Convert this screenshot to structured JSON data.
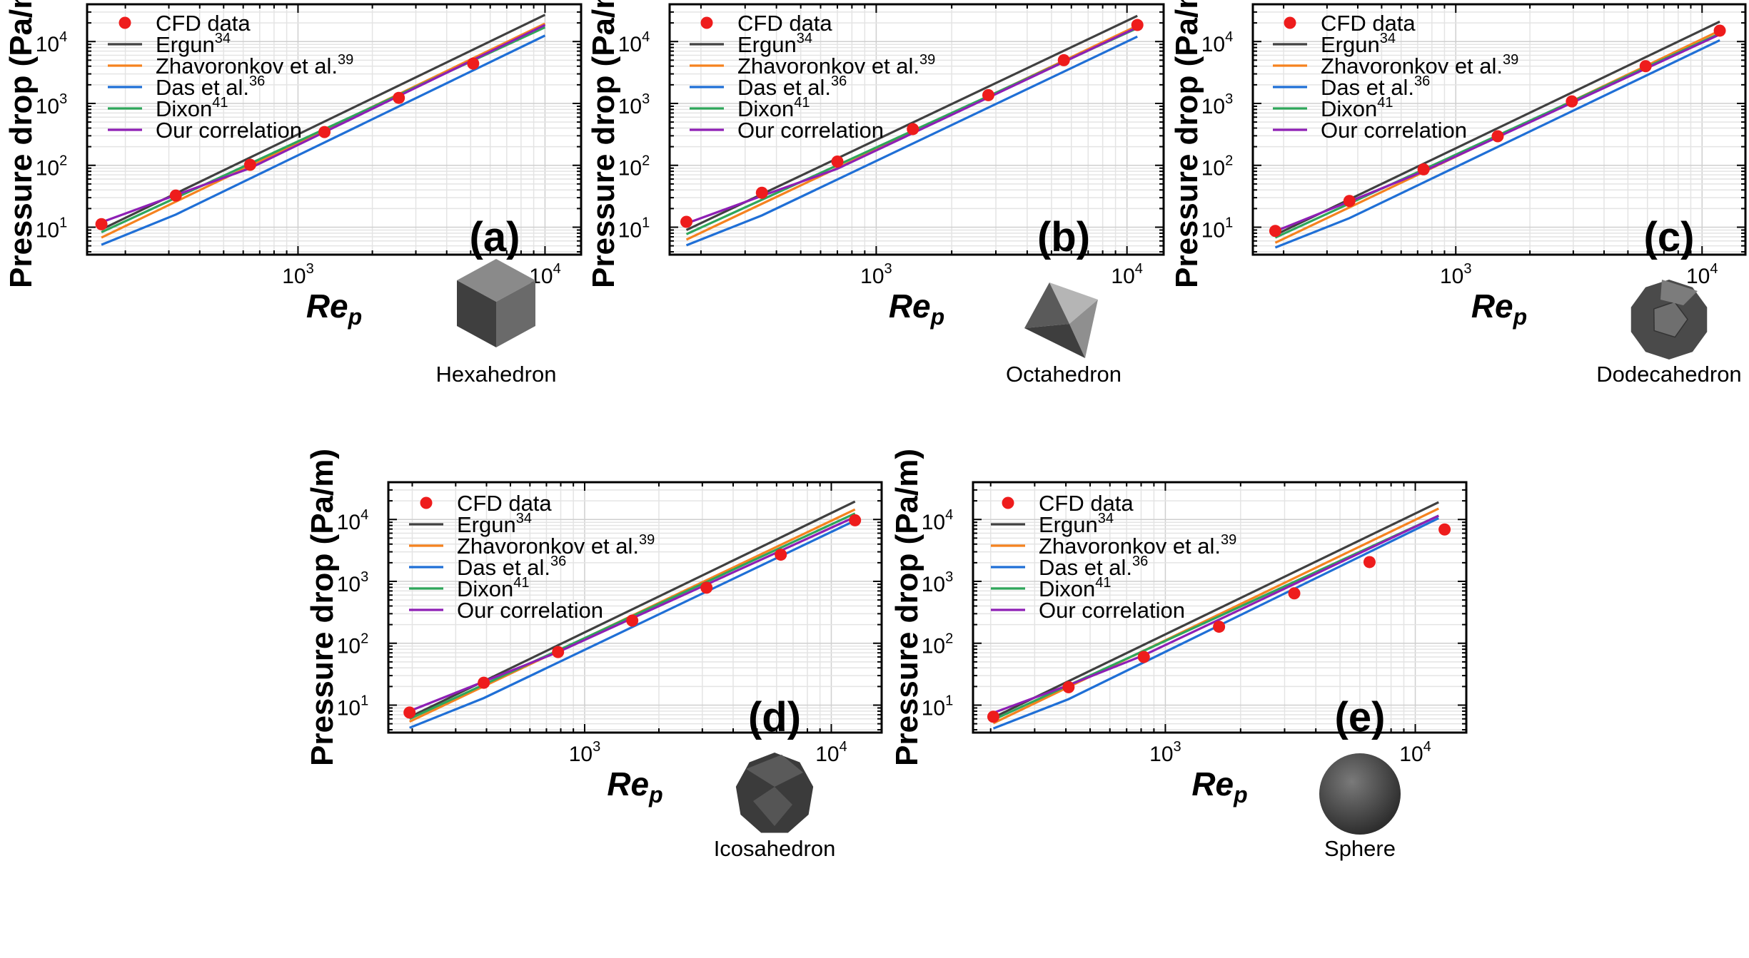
{
  "chart_data": [
    {
      "type": "line",
      "panel_label": "(a)",
      "shape": "Hexahedron",
      "shape_icon": "cube-icon",
      "xlabel": "Re",
      "xlabel_sub": "p",
      "ylabel": "Pressure drop (Pa/m)",
      "xscale": "log",
      "yscale": "log",
      "xlim": [
        140,
        14000
      ],
      "ylim": [
        3.6,
        40000
      ],
      "x_tick_labels": [
        "10",
        "10"
      ],
      "x_tick_exps": [
        "3",
        "4"
      ],
      "y_tick_labels": [
        "10",
        "10",
        "10",
        "10"
      ],
      "y_tick_exps": [
        "1",
        "2",
        "3",
        "4"
      ],
      "grid": true,
      "legend_position": "top-left",
      "series": [
        {
          "name": "CFD data",
          "ref": "",
          "kind": "scatter",
          "color": "#ee1c1c",
          "x": [
            160,
            320,
            640,
            1280,
            2560,
            5120
          ],
          "y": [
            11.2,
            32.5,
            102,
            345,
            1230,
            4400
          ]
        },
        {
          "name": "Ergun",
          "ref": "34",
          "kind": "line",
          "color": "#404040",
          "x": [
            160,
            10000
          ],
          "y": [
            9.2,
            27000
          ]
        },
        {
          "name": "Zhavoronkov et al.",
          "ref": "39",
          "kind": "line",
          "color": "#f5821f",
          "x": [
            160,
            10000
          ],
          "y": [
            6.8,
            19500
          ]
        },
        {
          "name": "Das et al.",
          "ref": "36",
          "kind": "line",
          "color": "#1f6fd6",
          "x": [
            160,
            320,
            10000
          ],
          "y": [
            5.2,
            16,
            12500
          ]
        },
        {
          "name": "Dixon",
          "ref": "41",
          "kind": "line",
          "color": "#2ea65a",
          "x": [
            160,
            10000
          ],
          "y": [
            8.3,
            17000
          ]
        },
        {
          "name": "Our correlation",
          "ref": "",
          "kind": "line",
          "color": "#8e1fb5",
          "x": [
            160,
            320,
            640,
            10000
          ],
          "y": [
            12,
            33,
            90,
            18500
          ]
        }
      ]
    },
    {
      "type": "line",
      "panel_label": "(b)",
      "shape": "Octahedron",
      "shape_icon": "octahedron-icon",
      "xlabel": "Re",
      "xlabel_sub": "p",
      "ylabel": "Pressure drop (Pa/m)",
      "xscale": "log",
      "yscale": "log",
      "xlim": [
        150,
        14000
      ],
      "ylim": [
        3.6,
        40000
      ],
      "x_tick_labels": [
        "10",
        "10"
      ],
      "x_tick_exps": [
        "3",
        "4"
      ],
      "y_tick_labels": [
        "10",
        "10",
        "10",
        "10"
      ],
      "y_tick_exps": [
        "1",
        "2",
        "3",
        "4"
      ],
      "grid": true,
      "legend_position": "top-left",
      "series": [
        {
          "name": "CFD data",
          "ref": "",
          "kind": "scatter",
          "color": "#ee1c1c",
          "x": [
            175,
            350,
            700,
            1400,
            2800,
            5600,
            11000
          ],
          "y": [
            12.2,
            36,
            115,
            385,
            1360,
            5000,
            18500
          ]
        },
        {
          "name": "Ergun",
          "ref": "34",
          "kind": "line",
          "color": "#404040",
          "x": [
            175,
            11000
          ],
          "y": [
            9,
            26000
          ]
        },
        {
          "name": "Zhavoronkov et al.",
          "ref": "39",
          "kind": "line",
          "color": "#f5821f",
          "x": [
            175,
            11000
          ],
          "y": [
            6.3,
            18000
          ]
        },
        {
          "name": "Das et al.",
          "ref": "36",
          "kind": "line",
          "color": "#1f6fd6",
          "x": [
            175,
            350,
            11000
          ],
          "y": [
            5.1,
            15.5,
            12000
          ]
        },
        {
          "name": "Dixon",
          "ref": "41",
          "kind": "line",
          "color": "#2ea65a",
          "x": [
            175,
            11000
          ],
          "y": [
            7.7,
            16500
          ]
        },
        {
          "name": "Our correlation",
          "ref": "",
          "kind": "line",
          "color": "#8e1fb5",
          "x": [
            175,
            350,
            700,
            11000
          ],
          "y": [
            11.5,
            32,
            88,
            17000
          ]
        }
      ]
    },
    {
      "type": "line",
      "panel_label": "(c)",
      "shape": "Dodecahedron",
      "shape_icon": "dodecahedron-icon",
      "xlabel": "Re",
      "xlabel_sub": "p",
      "ylabel": "Pressure drop (Pa/m)",
      "xscale": "log",
      "yscale": "log",
      "xlim": [
        150,
        15000
      ],
      "ylim": [
        3.6,
        40000
      ],
      "x_tick_labels": [
        "10",
        "10"
      ],
      "x_tick_exps": [
        "3",
        "4"
      ],
      "y_tick_labels": [
        "10",
        "10",
        "10",
        "10"
      ],
      "y_tick_exps": [
        "1",
        "2",
        "3",
        "4"
      ],
      "grid": true,
      "legend_position": "top-left",
      "series": [
        {
          "name": "CFD data",
          "ref": "",
          "kind": "scatter",
          "color": "#ee1c1c",
          "x": [
            185,
            370,
            740,
            1480,
            2960,
            5900,
            11800
          ],
          "y": [
            8.7,
            26.5,
            86,
            295,
            1080,
            4000,
            15000
          ]
        },
        {
          "name": "Ergun",
          "ref": "34",
          "kind": "line",
          "color": "#404040",
          "x": [
            185,
            11800
          ],
          "y": [
            7.5,
            21000
          ]
        },
        {
          "name": "Zhavoronkov et al.",
          "ref": "39",
          "kind": "line",
          "color": "#f5821f",
          "x": [
            185,
            11800
          ],
          "y": [
            5.6,
            15000
          ]
        },
        {
          "name": "Das et al.",
          "ref": "36",
          "kind": "line",
          "color": "#1f6fd6",
          "x": [
            185,
            370,
            11800
          ],
          "y": [
            4.7,
            14,
            10500
          ]
        },
        {
          "name": "Dixon",
          "ref": "41",
          "kind": "line",
          "color": "#2ea65a",
          "x": [
            185,
            11800
          ],
          "y": [
            6.8,
            13500
          ]
        },
        {
          "name": "Our correlation",
          "ref": "",
          "kind": "line",
          "color": "#8e1fb5",
          "x": [
            185,
            370,
            740,
            11800
          ],
          "y": [
            8.6,
            26,
            80,
            13000
          ]
        }
      ]
    },
    {
      "type": "line",
      "panel_label": "(d)",
      "shape": "Icosahedron",
      "shape_icon": "icosahedron-icon",
      "xlabel": "Re",
      "xlabel_sub": "p",
      "ylabel": "Pressure drop (Pa/m)",
      "xscale": "log",
      "yscale": "log",
      "xlim": [
        160,
        16000
      ],
      "ylim": [
        3.6,
        40000
      ],
      "x_tick_labels": [
        "10",
        "10"
      ],
      "x_tick_exps": [
        "3",
        "4"
      ],
      "y_tick_labels": [
        "10",
        "10",
        "10",
        "10"
      ],
      "y_tick_exps": [
        "1",
        "2",
        "3",
        "4"
      ],
      "grid": true,
      "legend_position": "top-left",
      "series": [
        {
          "name": "CFD data",
          "ref": "",
          "kind": "scatter",
          "color": "#ee1c1c",
          "x": [
            195,
            390,
            780,
            1560,
            3120,
            6240,
            12480
          ],
          "y": [
            7.6,
            23,
            72,
            232,
            790,
            2700,
            9700
          ]
        },
        {
          "name": "Ergun",
          "ref": "34",
          "kind": "line",
          "color": "#404040",
          "x": [
            195,
            12480
          ],
          "y": [
            6.4,
            19500
          ]
        },
        {
          "name": "Zhavoronkov et al.",
          "ref": "39",
          "kind": "line",
          "color": "#f5821f",
          "x": [
            195,
            12480
          ],
          "y": [
            5.4,
            14500
          ]
        },
        {
          "name": "Das et al.",
          "ref": "36",
          "kind": "line",
          "color": "#1f6fd6",
          "x": [
            195,
            390,
            12480
          ],
          "y": [
            4.3,
            13,
            9600
          ]
        },
        {
          "name": "Dixon",
          "ref": "41",
          "kind": "line",
          "color": "#2ea65a",
          "x": [
            195,
            12480
          ],
          "y": [
            6.0,
            12500
          ]
        },
        {
          "name": "Our correlation",
          "ref": "",
          "kind": "line",
          "color": "#8e1fb5",
          "x": [
            195,
            390,
            780,
            12480
          ],
          "y": [
            8.0,
            24,
            72,
            11000
          ]
        }
      ]
    },
    {
      "type": "line",
      "panel_label": "(e)",
      "shape": "Sphere",
      "shape_icon": "sphere-icon",
      "xlabel": "Re",
      "xlabel_sub": "p",
      "ylabel": "Pressure drop (Pa/m)",
      "xscale": "log",
      "yscale": "log",
      "xlim": [
        170,
        16000
      ],
      "ylim": [
        3.6,
        40000
      ],
      "x_tick_labels": [
        "10",
        "10"
      ],
      "x_tick_exps": [
        "3",
        "4"
      ],
      "y_tick_labels": [
        "10",
        "10",
        "10",
        "10"
      ],
      "y_tick_exps": [
        "1",
        "2",
        "3",
        "4"
      ],
      "grid": true,
      "legend_position": "top-left",
      "series": [
        {
          "name": "CFD data",
          "ref": "",
          "kind": "scatter",
          "color": "#ee1c1c",
          "x": [
            205,
            410,
            820,
            1640,
            3280,
            6560,
            13100
          ],
          "y": [
            6.5,
            19.5,
            60,
            185,
            640,
            2050,
            6900
          ]
        },
        {
          "name": "Ergun",
          "ref": "34",
          "kind": "line",
          "color": "#404040",
          "x": [
            205,
            12400
          ],
          "y": [
            6.3,
            19000
          ]
        },
        {
          "name": "Zhavoronkov et al.",
          "ref": "39",
          "kind": "line",
          "color": "#f5821f",
          "x": [
            205,
            12400
          ],
          "y": [
            5.1,
            15000
          ]
        },
        {
          "name": "Das et al.",
          "ref": "36",
          "kind": "line",
          "color": "#1f6fd6",
          "x": [
            205,
            410,
            12400
          ],
          "y": [
            4.2,
            12.5,
            10500
          ]
        },
        {
          "name": "Dixon",
          "ref": "41",
          "kind": "line",
          "color": "#2ea65a",
          "x": [
            205,
            12400
          ],
          "y": [
            5.8,
            11500
          ]
        },
        {
          "name": "Our correlation",
          "ref": "",
          "kind": "line",
          "color": "#8e1fb5",
          "x": [
            205,
            410,
            820,
            12400
          ],
          "y": [
            7.5,
            21,
            64,
            11500
          ]
        }
      ]
    }
  ]
}
